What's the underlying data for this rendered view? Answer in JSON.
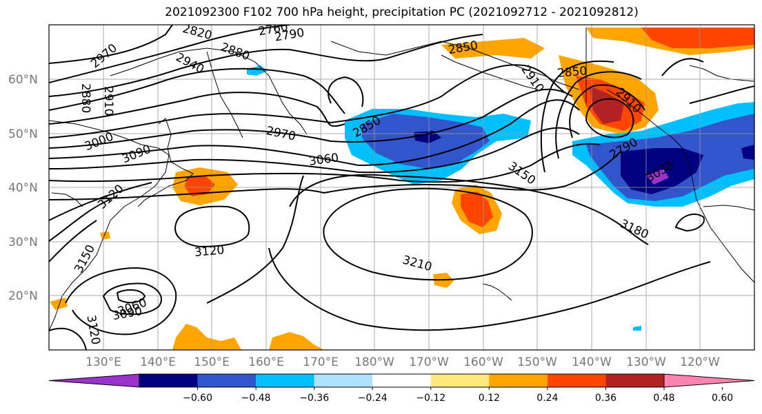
{
  "title": "2021092300 F102 700 hPa height, precipitation PC (2021092712 - 2021092812)",
  "lat_labels": [
    "60°N",
    "50°N",
    "40°N",
    "30°N",
    "20°N"
  ],
  "lon_labels": [
    "130°E",
    "140°E",
    "150°E",
    "160°E",
    "170°E",
    "180°W",
    "170°W",
    "160°W",
    "150°W",
    "140°W",
    "130°W",
    "120°W"
  ],
  "contour_labels": [
    "2970",
    "2940",
    "2910",
    "2880",
    "3000",
    "3090",
    "3120",
    "3150",
    "2820",
    "2760",
    "2790",
    "2880",
    "2850",
    "2970",
    "3060",
    "2850",
    "2910",
    "2850",
    "2790",
    "2910",
    "3030",
    "3150",
    "3180",
    "3210",
    "3120",
    "3060",
    "3090",
    "3120"
  ],
  "colorbar": {
    "ticks": [
      "−0.60",
      "−0.48",
      "−0.36",
      "−0.24",
      "−0.12",
      "0.12",
      "0.24",
      "0.36",
      "0.48",
      "0.60"
    ],
    "colors": [
      "#9933cc",
      "#000080",
      "#3355cc",
      "#00bfff",
      "#b0e2ff",
      "#ffffff",
      "#ffe97f",
      "#ffa500",
      "#ff4500",
      "#b22222",
      "#ff83b0"
    ]
  }
}
